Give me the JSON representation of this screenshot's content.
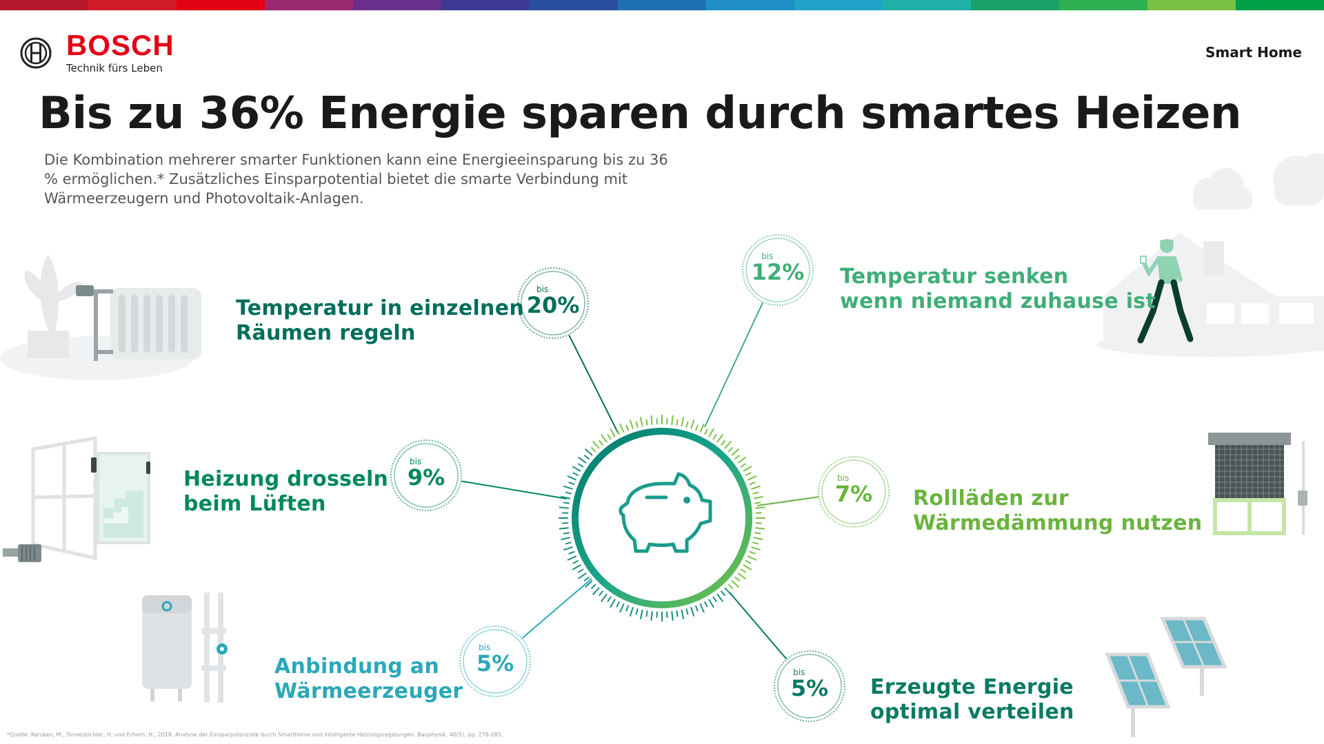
{
  "brand": {
    "name": "BOSCH",
    "tagline": "Technik fürs Leben",
    "section": "Smart Home"
  },
  "colors": {
    "brand_red": "#e20015",
    "dark_green": "#007a5e",
    "teal": "#1f9aa8",
    "light_green": "#7ac143",
    "gray": "#e3e5e7"
  },
  "top_bar_colors": [
    "#b5172b",
    "#d11a2a",
    "#e20015",
    "#9c2a6e",
    "#6a2f8c",
    "#3d3a94",
    "#2a4fa0",
    "#1f6fb5",
    "#1f8fc8",
    "#1fa3c8",
    "#1fb0a8",
    "#1aa06a",
    "#2fb050",
    "#7ac143",
    "#00a046"
  ],
  "title": "Bis zu 36% Energie sparen durch smartes Heizen",
  "subtitle": "Die Kombination mehrerer smarter Funktionen kann eine Energieeinsparung bis zu 36 % ermöglichen.* Zusätzliches Einsparpotential bietet die smarte Verbindung mit Wärmeerzeugern und Photovoltaik-Anlagen.",
  "center_icon": "piggy-bank-icon",
  "savings": [
    {
      "id": "raeume",
      "prefix": "bis",
      "value": "20%",
      "label_line1": "Temperatur in einzelnen",
      "label_line2": "Räumen regeln",
      "color": "#006e5a",
      "icon": "radiator-icon"
    },
    {
      "id": "abwesend",
      "prefix": "bis",
      "value": "12%",
      "label_line1": "Temperatur senken",
      "label_line2": "wenn niemand zuhause ist",
      "color": "#3fae78",
      "icon": "walking-person-icon"
    },
    {
      "id": "lueften",
      "prefix": "bis",
      "value": "9%",
      "label_line1": "Heizung drosseln",
      "label_line2": "beim Lüften",
      "color": "#00875f",
      "icon": "window-icon"
    },
    {
      "id": "rolllaeden",
      "prefix": "bis",
      "value": "7%",
      "label_line1": "Rollläden zur",
      "label_line2": "Wärmedämmung nutzen",
      "color": "#6ab43e",
      "icon": "roller-shutter-icon"
    },
    {
      "id": "waermeerzeuger",
      "prefix": "bis",
      "value": "5%",
      "label_line1": "Anbindung an",
      "label_line2": "Wärmeerzeuger",
      "color": "#2aa8b8",
      "icon": "heat-generator-icon"
    },
    {
      "id": "energie",
      "prefix": "bis",
      "value": "5%",
      "label_line1": "Erzeugte Energie",
      "label_line2": "optimal verteilen",
      "color": "#0a7a63",
      "icon": "solar-panel-icon"
    }
  ],
  "footnote": "*Quelle: Kersken, M., Sinnesbichler, H. und Erhorn, H., 2018. Analyse der Einsparpotenziale durch Smarthome und intelligente Heizungsregelungen. Bauphysik, 40(5), pp. 276-285."
}
